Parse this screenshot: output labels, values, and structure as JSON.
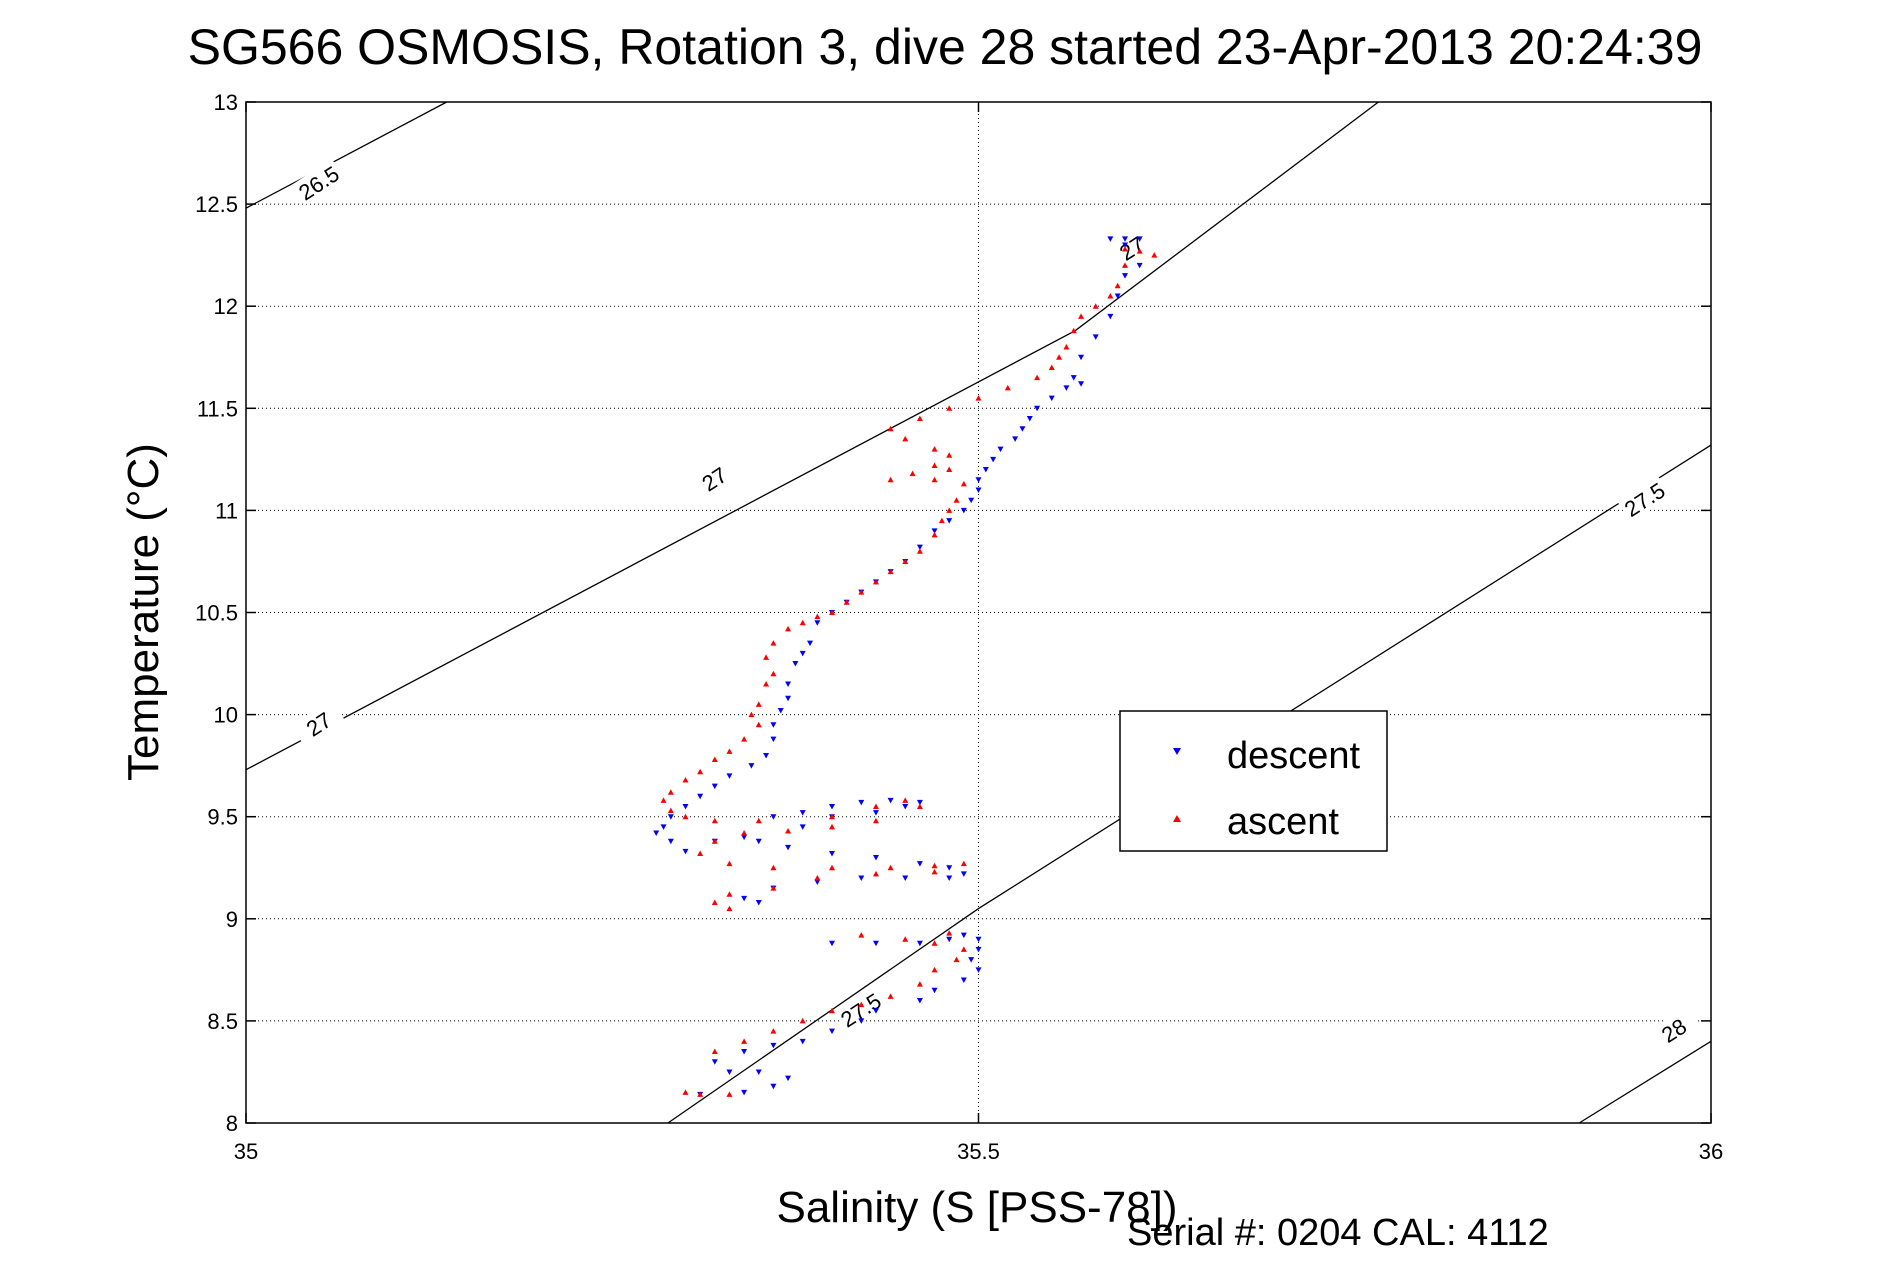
{
  "chart_data": {
    "type": "scatter",
    "title": "SG566 OSMOSIS, Rotation 3, dive 28 started 23-Apr-2013 20:24:39",
    "xlabel": "Salinity (S [PSS-78])",
    "ylabel": "Temperature (°C)",
    "xlim": [
      35,
      36
    ],
    "ylim": [
      8,
      13
    ],
    "x_ticks": [
      "35",
      "35.5",
      "36"
    ],
    "y_ticks": [
      "8",
      "8.5",
      "9",
      "9.5",
      "10",
      "10.5",
      "11",
      "11.5",
      "12",
      "12.5",
      "13"
    ],
    "grid": true,
    "legend_position": "center-right",
    "density_contours": [
      {
        "label": "26.5",
        "points": [
          [
            35.0,
            12.48
          ],
          [
            35.137,
            13.0
          ]
        ]
      },
      {
        "label": "27",
        "points": [
          [
            35.0,
            9.73
          ],
          [
            35.566,
            11.88
          ],
          [
            35.773,
            13.0
          ]
        ]
      },
      {
        "label": "27.5",
        "points": [
          [
            35.288,
            8.0
          ],
          [
            35.5,
            9.05
          ],
          [
            36.0,
            11.32
          ]
        ]
      },
      {
        "label": "28",
        "points": [
          [
            35.91,
            8.0
          ],
          [
            36.0,
            8.4
          ]
        ]
      }
    ],
    "contour_labels": [
      {
        "text": "26.5",
        "x": 35.05,
        "y": 12.6
      },
      {
        "text": "27",
        "x": 35.32,
        "y": 11.15
      },
      {
        "text": "27",
        "x": 35.05,
        "y": 9.95
      },
      {
        "text": "27",
        "x": 35.605,
        "y": 12.28
      },
      {
        "text": "27.5",
        "x": 35.955,
        "y": 11.05
      },
      {
        "text": "27.5",
        "x": 35.42,
        "y": 8.55
      },
      {
        "text": "28",
        "x": 35.975,
        "y": 8.45
      }
    ],
    "series": [
      {
        "name": "descent",
        "color": "#0000ff",
        "marker": "triangle-down",
        "points": [
          [
            35.59,
            12.33
          ],
          [
            35.6,
            12.33
          ],
          [
            35.61,
            12.33
          ],
          [
            35.6,
            12.3
          ],
          [
            35.61,
            12.2
          ],
          [
            35.6,
            12.15
          ],
          [
            35.595,
            12.05
          ],
          [
            35.59,
            11.95
          ],
          [
            35.58,
            11.85
          ],
          [
            35.57,
            11.75
          ],
          [
            35.565,
            11.65
          ],
          [
            35.57,
            11.62
          ],
          [
            35.56,
            11.6
          ],
          [
            35.55,
            11.55
          ],
          [
            35.54,
            11.5
          ],
          [
            35.535,
            11.45
          ],
          [
            35.53,
            11.4
          ],
          [
            35.525,
            11.35
          ],
          [
            35.515,
            11.3
          ],
          [
            35.51,
            11.25
          ],
          [
            35.505,
            11.2
          ],
          [
            35.5,
            11.15
          ],
          [
            35.5,
            11.1
          ],
          [
            35.495,
            11.05
          ],
          [
            35.49,
            11.0
          ],
          [
            35.48,
            10.95
          ],
          [
            35.47,
            10.9
          ],
          [
            35.46,
            10.82
          ],
          [
            35.45,
            10.75
          ],
          [
            35.44,
            10.7
          ],
          [
            35.43,
            10.65
          ],
          [
            35.42,
            10.6
          ],
          [
            35.41,
            10.55
          ],
          [
            35.4,
            10.5
          ],
          [
            35.39,
            10.45
          ],
          [
            35.385,
            10.35
          ],
          [
            35.38,
            10.3
          ],
          [
            35.375,
            10.25
          ],
          [
            35.37,
            10.15
          ],
          [
            35.37,
            10.08
          ],
          [
            35.365,
            10.02
          ],
          [
            35.36,
            9.95
          ],
          [
            35.36,
            9.88
          ],
          [
            35.355,
            9.8
          ],
          [
            35.345,
            9.75
          ],
          [
            35.33,
            9.7
          ],
          [
            35.32,
            9.65
          ],
          [
            35.31,
            9.6
          ],
          [
            35.3,
            9.55
          ],
          [
            35.29,
            9.5
          ],
          [
            35.285,
            9.45
          ],
          [
            35.28,
            9.42
          ],
          [
            35.29,
            9.38
          ],
          [
            35.3,
            9.33
          ],
          [
            35.32,
            9.38
          ],
          [
            35.34,
            9.4
          ],
          [
            35.38,
            9.45
          ],
          [
            35.4,
            9.5
          ],
          [
            35.43,
            9.52
          ],
          [
            35.45,
            9.55
          ],
          [
            35.46,
            9.57
          ],
          [
            35.44,
            9.58
          ],
          [
            35.42,
            9.57
          ],
          [
            35.4,
            9.55
          ],
          [
            35.38,
            9.52
          ],
          [
            35.36,
            9.5
          ],
          [
            35.35,
            9.38
          ],
          [
            35.37,
            9.35
          ],
          [
            35.4,
            9.32
          ],
          [
            35.43,
            9.3
          ],
          [
            35.46,
            9.27
          ],
          [
            35.48,
            9.25
          ],
          [
            35.49,
            9.22
          ],
          [
            35.48,
            9.2
          ],
          [
            35.45,
            9.2
          ],
          [
            35.42,
            9.2
          ],
          [
            35.39,
            9.18
          ],
          [
            35.36,
            9.15
          ],
          [
            35.34,
            9.1
          ],
          [
            35.35,
            9.08
          ],
          [
            35.4,
            8.88
          ],
          [
            35.43,
            8.88
          ],
          [
            35.46,
            8.88
          ],
          [
            35.48,
            8.9
          ],
          [
            35.49,
            8.92
          ],
          [
            35.5,
            8.9
          ],
          [
            35.5,
            8.85
          ],
          [
            35.495,
            8.8
          ],
          [
            35.5,
            8.75
          ],
          [
            35.49,
            8.7
          ],
          [
            35.47,
            8.65
          ],
          [
            35.46,
            8.6
          ],
          [
            35.43,
            8.55
          ],
          [
            35.42,
            8.5
          ],
          [
            35.4,
            8.45
          ],
          [
            35.38,
            8.4
          ],
          [
            35.36,
            8.38
          ],
          [
            35.34,
            8.35
          ],
          [
            35.32,
            8.3
          ],
          [
            35.33,
            8.25
          ],
          [
            35.35,
            8.25
          ],
          [
            35.37,
            8.22
          ],
          [
            35.36,
            8.18
          ],
          [
            35.34,
            8.15
          ],
          [
            35.31,
            8.14
          ]
        ]
      },
      {
        "name": "ascent",
        "color": "#ff0000",
        "marker": "triangle-up",
        "points": [
          [
            35.6,
            12.28
          ],
          [
            35.61,
            12.27
          ],
          [
            35.62,
            12.25
          ],
          [
            35.6,
            12.2
          ],
          [
            35.595,
            12.1
          ],
          [
            35.59,
            12.05
          ],
          [
            35.58,
            12.0
          ],
          [
            35.57,
            11.95
          ],
          [
            35.565,
            11.88
          ],
          [
            35.56,
            11.8
          ],
          [
            35.555,
            11.75
          ],
          [
            35.55,
            11.7
          ],
          [
            35.54,
            11.65
          ],
          [
            35.52,
            11.6
          ],
          [
            35.5,
            11.55
          ],
          [
            35.48,
            11.5
          ],
          [
            35.46,
            11.45
          ],
          [
            35.44,
            11.4
          ],
          [
            35.45,
            11.35
          ],
          [
            35.47,
            11.3
          ],
          [
            35.48,
            11.27
          ],
          [
            35.47,
            11.22
          ],
          [
            35.455,
            11.18
          ],
          [
            35.44,
            11.15
          ],
          [
            35.47,
            11.15
          ],
          [
            35.48,
            11.2
          ],
          [
            35.49,
            11.13
          ],
          [
            35.485,
            11.05
          ],
          [
            35.48,
            11.0
          ],
          [
            35.475,
            10.95
          ],
          [
            35.47,
            10.88
          ],
          [
            35.46,
            10.8
          ],
          [
            35.45,
            10.75
          ],
          [
            35.44,
            10.7
          ],
          [
            35.43,
            10.65
          ],
          [
            35.42,
            10.6
          ],
          [
            35.41,
            10.55
          ],
          [
            35.4,
            10.5
          ],
          [
            35.39,
            10.48
          ],
          [
            35.38,
            10.45
          ],
          [
            35.37,
            10.42
          ],
          [
            35.36,
            10.35
          ],
          [
            35.355,
            10.28
          ],
          [
            35.36,
            10.2
          ],
          [
            35.355,
            10.15
          ],
          [
            35.35,
            10.05
          ],
          [
            35.345,
            10.0
          ],
          [
            35.35,
            9.95
          ],
          [
            35.34,
            9.88
          ],
          [
            35.33,
            9.82
          ],
          [
            35.32,
            9.78
          ],
          [
            35.31,
            9.72
          ],
          [
            35.3,
            9.68
          ],
          [
            35.29,
            9.62
          ],
          [
            35.285,
            9.58
          ],
          [
            35.29,
            9.53
          ],
          [
            35.3,
            9.5
          ],
          [
            35.32,
            9.48
          ],
          [
            35.35,
            9.48
          ],
          [
            35.4,
            9.5
          ],
          [
            35.43,
            9.55
          ],
          [
            35.45,
            9.58
          ],
          [
            35.46,
            9.55
          ],
          [
            35.43,
            9.48
          ],
          [
            35.4,
            9.45
          ],
          [
            35.37,
            9.43
          ],
          [
            35.34,
            9.42
          ],
          [
            35.32,
            9.38
          ],
          [
            35.31,
            9.32
          ],
          [
            35.33,
            9.27
          ],
          [
            35.36,
            9.25
          ],
          [
            35.4,
            9.25
          ],
          [
            35.44,
            9.25
          ],
          [
            35.47,
            9.26
          ],
          [
            35.49,
            9.27
          ],
          [
            35.47,
            9.23
          ],
          [
            35.43,
            9.22
          ],
          [
            35.39,
            9.2
          ],
          [
            35.36,
            9.15
          ],
          [
            35.33,
            9.12
          ],
          [
            35.32,
            9.08
          ],
          [
            35.33,
            9.05
          ],
          [
            35.42,
            8.92
          ],
          [
            35.45,
            8.9
          ],
          [
            35.47,
            8.88
          ],
          [
            35.48,
            8.93
          ],
          [
            35.49,
            8.85
          ],
          [
            35.485,
            8.8
          ],
          [
            35.47,
            8.75
          ],
          [
            35.46,
            8.68
          ],
          [
            35.44,
            8.62
          ],
          [
            35.42,
            8.58
          ],
          [
            35.4,
            8.55
          ],
          [
            35.38,
            8.5
          ],
          [
            35.36,
            8.45
          ],
          [
            35.34,
            8.4
          ],
          [
            35.32,
            8.35
          ],
          [
            35.3,
            8.15
          ],
          [
            35.31,
            8.14
          ],
          [
            35.33,
            8.14
          ]
        ]
      }
    ]
  },
  "legend": {
    "descent_label": "descent",
    "ascent_label": "ascent"
  },
  "footer": {
    "serial_label": "Serial #: 0204  CAL: 4112"
  }
}
